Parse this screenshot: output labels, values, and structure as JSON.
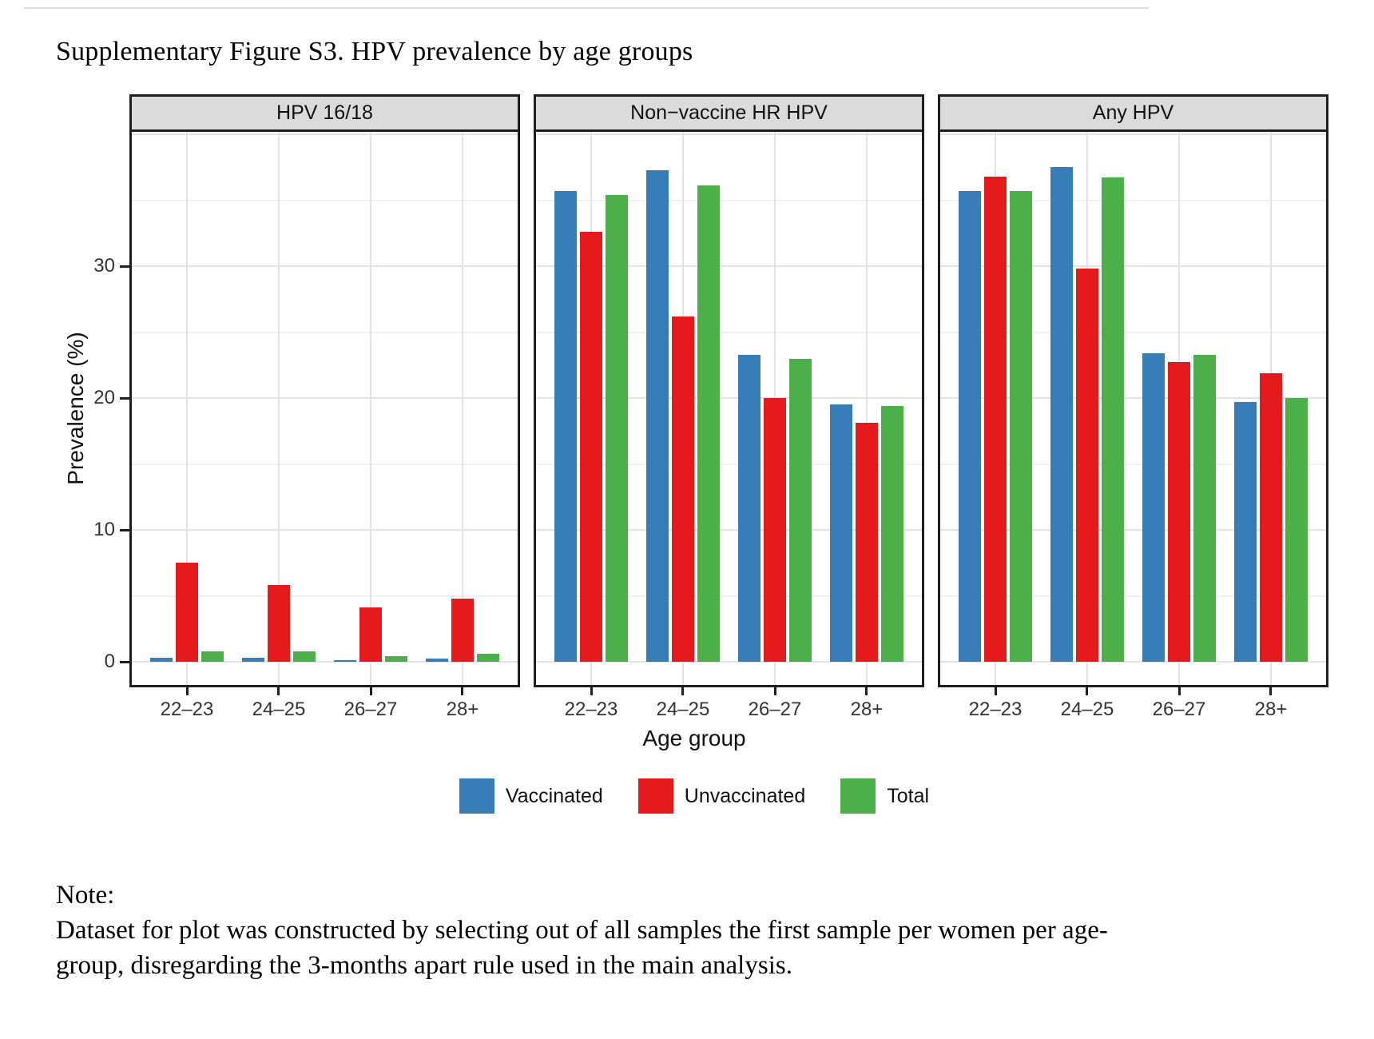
{
  "page": {
    "title": "Supplementary Figure S3. HPV prevalence by age groups"
  },
  "note": {
    "heading": "Note:",
    "line1": "Dataset for plot was constructed by selecting out of all samples the first sample per women per age-",
    "line2": "group, disregarding the 3-months apart rule used in the main analysis."
  },
  "chart_data": {
    "type": "bar",
    "layout": "3 facets side by side, grouped dodged bars",
    "xlabel": "Age group",
    "ylabel": "Prevalence (%)",
    "categories": [
      "22–23",
      "24–25",
      "26–27",
      "28+"
    ],
    "series_names": [
      "Vaccinated",
      "Unvaccinated",
      "Total"
    ],
    "colors": {
      "Vaccinated": "#377EB8",
      "Unvaccinated": "#E41A1C",
      "Total": "#4DAF4A"
    },
    "y_ticks": [
      0,
      10,
      20,
      30
    ],
    "ylim": [
      -1.9,
      40.4
    ],
    "grid": true,
    "legend_position": "bottom",
    "facets": [
      {
        "label": "HPV 16/18",
        "series": [
          {
            "name": "Vaccinated",
            "values": [
              0.3,
              0.3,
              0.15,
              0.25
            ]
          },
          {
            "name": "Unvaccinated",
            "values": [
              7.5,
              5.8,
              4.1,
              4.8
            ]
          },
          {
            "name": "Total",
            "values": [
              0.8,
              0.8,
              0.4,
              0.6
            ]
          }
        ]
      },
      {
        "label": "Non−vaccine HR HPV",
        "series": [
          {
            "name": "Vaccinated",
            "values": [
              35.7,
              37.3,
              23.3,
              19.5
            ]
          },
          {
            "name": "Unvaccinated",
            "values": [
              32.6,
              26.2,
              20.0,
              18.1
            ]
          },
          {
            "name": "Total",
            "values": [
              35.4,
              36.1,
              23.0,
              19.4
            ]
          }
        ]
      },
      {
        "label": "Any HPV",
        "series": [
          {
            "name": "Vaccinated",
            "values": [
              35.7,
              37.5,
              23.4,
              19.7
            ]
          },
          {
            "name": "Unvaccinated",
            "values": [
              36.8,
              29.8,
              22.7,
              21.9
            ]
          },
          {
            "name": "Total",
            "values": [
              35.7,
              36.7,
              23.3,
              20.0
            ]
          }
        ]
      }
    ]
  }
}
